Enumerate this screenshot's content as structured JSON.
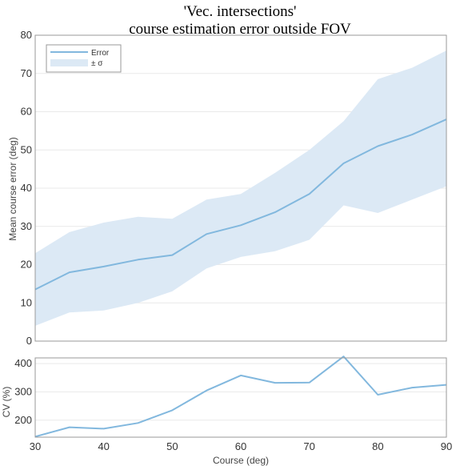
{
  "colors": {
    "line": "#82b8de",
    "band": "#dce9f5",
    "frame": "#9a9a9a",
    "grid": "#e9e9e9"
  },
  "chart_data": [
    {
      "type": "line",
      "title": "'Vec. intersections'",
      "subtitle": "course estimation error outside FOV",
      "xlabel": "",
      "ylabel": "Mean course error (deg)",
      "x": [
        30,
        35,
        40,
        45,
        50,
        55,
        60,
        65,
        70,
        75,
        80,
        85,
        90
      ],
      "xlim": [
        30,
        90
      ],
      "ylim": [
        0,
        80
      ],
      "yticks": [
        0,
        10,
        20,
        30,
        40,
        50,
        60,
        70,
        80
      ],
      "grid": true,
      "legend": {
        "placement": "top-left",
        "line_label": "Error",
        "band_label": "± σ"
      },
      "series": [
        {
          "name": "Error",
          "values": [
            13.5,
            18,
            19.5,
            21.3,
            22.5,
            28,
            30.3,
            33.7,
            38.5,
            46.5,
            51,
            54,
            58
          ]
        }
      ],
      "band": {
        "name": "± σ",
        "lower": [
          4,
          7.5,
          8,
          10,
          13,
          19,
          22,
          23.5,
          26.5,
          35.5,
          33.5,
          37,
          40.5
        ],
        "upper": [
          23,
          28.5,
          31,
          32.5,
          32,
          37,
          38.5,
          44,
          50,
          57.5,
          68.5,
          71.5,
          76
        ]
      }
    },
    {
      "type": "line",
      "title": "",
      "xlabel": "Course (deg)",
      "ylabel": "CV (%)",
      "x": [
        30,
        35,
        40,
        45,
        50,
        55,
        60,
        65,
        70,
        75,
        80,
        85,
        90
      ],
      "xlim": [
        30,
        90
      ],
      "xticks": [
        30,
        40,
        50,
        60,
        70,
        80,
        90
      ],
      "ylim": [
        140,
        420
      ],
      "yticks": [
        200,
        300,
        400
      ],
      "grid": true,
      "series": [
        {
          "name": "",
          "values": [
            142,
            175,
            170,
            190,
            235,
            305,
            358,
            332,
            333,
            425,
            290,
            315,
            325
          ]
        }
      ]
    }
  ]
}
